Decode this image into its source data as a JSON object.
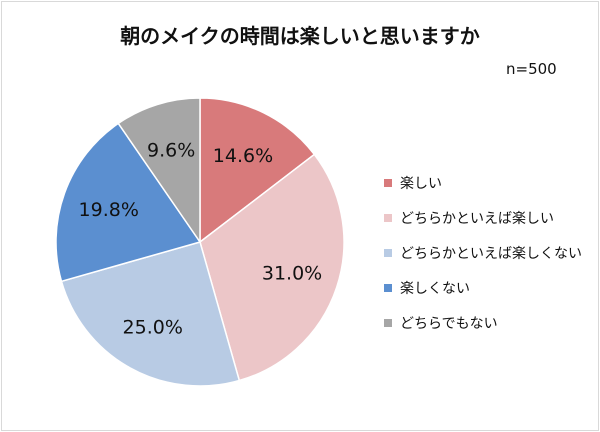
{
  "chart_data": {
    "type": "pie",
    "title": "朝のメイクの時間は楽しいと思いますか",
    "note": "n=500",
    "categories": [
      "楽しい",
      "どちらかといえば楽しい",
      "どちらかといえば楽しくない",
      "楽しくない",
      "どちらでもない"
    ],
    "values": [
      14.6,
      31.0,
      25.0,
      19.8,
      9.6
    ],
    "value_labels": [
      "14.6%",
      "31.0%",
      "25.0%",
      "19.8%",
      "9.6%"
    ],
    "colors": [
      "#d87a7b",
      "#ecc6c8",
      "#b8cbe4",
      "#5b8fd0",
      "#a6a6a6"
    ],
    "legend_position": "right",
    "start_angle": "12 o'clock, clockwise"
  }
}
